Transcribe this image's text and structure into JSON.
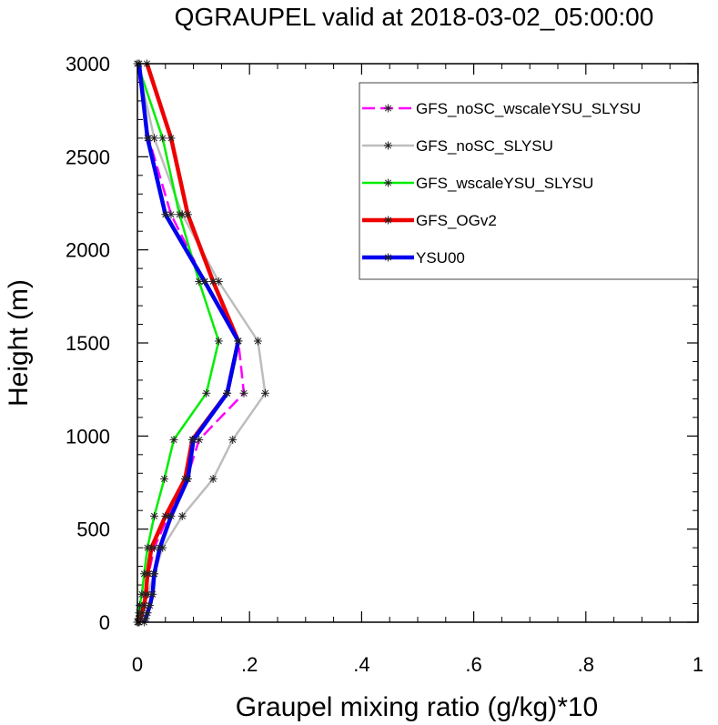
{
  "chart_data": {
    "type": "line",
    "title": "QGRAUPEL valid at 2018-03-02_05:00:00",
    "xlabel": "Graupel mixing ratio (g/kg)*10",
    "ylabel": "Height (m)",
    "xlim": [
      0,
      1
    ],
    "ylim": [
      0,
      3000
    ],
    "x_ticks": [
      0,
      0.2,
      0.4,
      0.6,
      0.8,
      1
    ],
    "x_tick_labels": [
      "0",
      ".2",
      ".4",
      ".6",
      ".8",
      "1"
    ],
    "y_ticks": [
      0,
      500,
      1000,
      1500,
      2000,
      2500,
      3000
    ],
    "y_tick_labels": [
      "0",
      "500",
      "1000",
      "1500",
      "2000",
      "2500",
      "3000"
    ],
    "grid": false,
    "legend_position": "top-right",
    "heights": [
      0,
      20,
      50,
      90,
      150,
      260,
      400,
      570,
      770,
      980,
      1230,
      1510,
      1830,
      2190,
      2600,
      3000
    ],
    "series": [
      {
        "name": "GFS_noSC_wscaleYSU_SLYSU",
        "color": "#ff00ff",
        "dashed": true,
        "width": 2.5,
        "values": [
          0.002,
          0.004,
          0.006,
          0.01,
          0.015,
          0.02,
          0.03,
          0.055,
          0.088,
          0.11,
          0.19,
          0.18,
          0.12,
          0.06,
          0.02,
          0.0
        ]
      },
      {
        "name": "GFS_noSC_SLYSU",
        "color": "#bdbdbd",
        "dashed": false,
        "width": 2.5,
        "values": [
          0.002,
          0.004,
          0.006,
          0.01,
          0.018,
          0.03,
          0.045,
          0.08,
          0.135,
          0.17,
          0.228,
          0.215,
          0.145,
          0.08,
          0.03,
          0.0
        ]
      },
      {
        "name": "GFS_wscaleYSU_SLYSU",
        "color": "#00ee00",
        "dashed": false,
        "width": 2.5,
        "values": [
          0.0,
          0.002,
          0.003,
          0.004,
          0.008,
          0.012,
          0.018,
          0.03,
          0.048,
          0.065,
          0.123,
          0.145,
          0.11,
          0.075,
          0.045,
          0.0
        ]
      },
      {
        "name": "GFS_OGv2",
        "color": "#ee0000",
        "dashed": false,
        "width": 4.5,
        "values": [
          0.003,
          0.006,
          0.008,
          0.012,
          0.015,
          0.018,
          0.025,
          0.05,
          0.085,
          0.098,
          0.16,
          0.18,
          0.135,
          0.09,
          0.06,
          0.017
        ]
      },
      {
        "name": "YSU00",
        "color": "#0000ee",
        "dashed": false,
        "width": 4.5,
        "values": [
          0.012,
          0.015,
          0.018,
          0.022,
          0.027,
          0.03,
          0.04,
          0.06,
          0.09,
          0.1,
          0.16,
          0.18,
          0.12,
          0.05,
          0.018,
          0.003
        ]
      }
    ]
  }
}
